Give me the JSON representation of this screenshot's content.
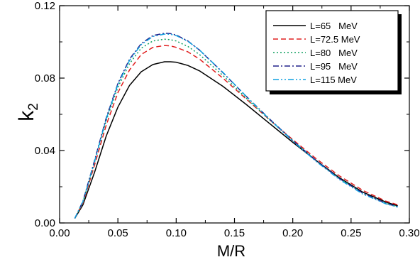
{
  "chart_data": {
    "type": "line",
    "xlabel": "M/R",
    "ylabel_main": "k",
    "ylabel_sub": "2",
    "xlim": [
      0.0,
      0.3
    ],
    "ylim": [
      0.0,
      0.12
    ],
    "x_ticks": [
      0.0,
      0.05,
      0.1,
      0.15,
      0.2,
      0.25,
      0.3
    ],
    "x_tick_labels": [
      "0.00",
      "0.05",
      "0.10",
      "0.15",
      "0.20",
      "0.25",
      "0.30"
    ],
    "y_ticks": [
      0.0,
      0.04,
      0.08,
      0.12
    ],
    "y_tick_labels": [
      "0.00",
      "0.04",
      "0.08",
      "0.12"
    ],
    "grid": false,
    "legend_position": "top-right",
    "series": [
      {
        "name": "L=65   MeV",
        "color": "#000000",
        "dash": "",
        "x": [
          0.013,
          0.02,
          0.03,
          0.04,
          0.05,
          0.06,
          0.07,
          0.08,
          0.09,
          0.095,
          0.1,
          0.11,
          0.12,
          0.14,
          0.16,
          0.18,
          0.2,
          0.22,
          0.24,
          0.26,
          0.28,
          0.29
        ],
        "y": [
          0.0025,
          0.01,
          0.028,
          0.048,
          0.064,
          0.076,
          0.0835,
          0.0875,
          0.089,
          0.089,
          0.0888,
          0.087,
          0.084,
          0.0755,
          0.0655,
          0.055,
          0.0445,
          0.0345,
          0.025,
          0.017,
          0.0115,
          0.0095
        ]
      },
      {
        "name": "L=72.5 MeV",
        "color": "#e02020",
        "dash": "7 4",
        "x": [
          0.013,
          0.02,
          0.03,
          0.04,
          0.05,
          0.06,
          0.07,
          0.08,
          0.09,
          0.095,
          0.1,
          0.11,
          0.12,
          0.14,
          0.16,
          0.18,
          0.2,
          0.22,
          0.24,
          0.26,
          0.28,
          0.29
        ],
        "y": [
          0.0025,
          0.011,
          0.032,
          0.054,
          0.072,
          0.0845,
          0.093,
          0.097,
          0.098,
          0.0978,
          0.097,
          0.0945,
          0.0905,
          0.08,
          0.0685,
          0.057,
          0.046,
          0.0355,
          0.026,
          0.018,
          0.012,
          0.01
        ]
      },
      {
        "name": "L=80   MeV",
        "color": "#10a060",
        "dash": "2 3",
        "x": [
          0.013,
          0.02,
          0.03,
          0.04,
          0.05,
          0.06,
          0.07,
          0.08,
          0.09,
          0.095,
          0.1,
          0.11,
          0.12,
          0.14,
          0.16,
          0.18,
          0.2,
          0.22,
          0.24,
          0.26,
          0.28,
          0.29
        ],
        "y": [
          0.0025,
          0.0115,
          0.0335,
          0.0565,
          0.075,
          0.088,
          0.0965,
          0.1005,
          0.1015,
          0.1012,
          0.1005,
          0.0975,
          0.093,
          0.0815,
          0.069,
          0.057,
          0.0455,
          0.0345,
          0.0245,
          0.0165,
          0.0108,
          0.009
        ]
      },
      {
        "name": "L=95   MeV",
        "color": "#20208a",
        "dash": "8 3 2 3",
        "x": [
          0.013,
          0.02,
          0.03,
          0.04,
          0.05,
          0.06,
          0.07,
          0.08,
          0.09,
          0.095,
          0.1,
          0.11,
          0.12,
          0.14,
          0.16,
          0.18,
          0.2,
          0.22,
          0.24,
          0.26,
          0.28,
          0.29
        ],
        "y": [
          0.0025,
          0.012,
          0.0345,
          0.058,
          0.077,
          0.0905,
          0.099,
          0.1035,
          0.1048,
          0.1046,
          0.1038,
          0.1005,
          0.0955,
          0.083,
          0.07,
          0.0575,
          0.0455,
          0.0345,
          0.0245,
          0.0165,
          0.0108,
          0.009
        ]
      },
      {
        "name": "L=115 MeV",
        "color": "#10a0e0",
        "dash": "8 3 2 3 2 3",
        "x": [
          0.013,
          0.02,
          0.03,
          0.04,
          0.05,
          0.06,
          0.07,
          0.08,
          0.09,
          0.095,
          0.1,
          0.11,
          0.12,
          0.14,
          0.16,
          0.18,
          0.2,
          0.22,
          0.24,
          0.26,
          0.28,
          0.29
        ],
        "y": [
          0.0025,
          0.0118,
          0.034,
          0.0575,
          0.0765,
          0.0898,
          0.0985,
          0.103,
          0.1043,
          0.1042,
          0.1035,
          0.1003,
          0.0955,
          0.0832,
          0.07,
          0.0573,
          0.0452,
          0.034,
          0.024,
          0.016,
          0.0105,
          0.0088
        ]
      }
    ]
  }
}
